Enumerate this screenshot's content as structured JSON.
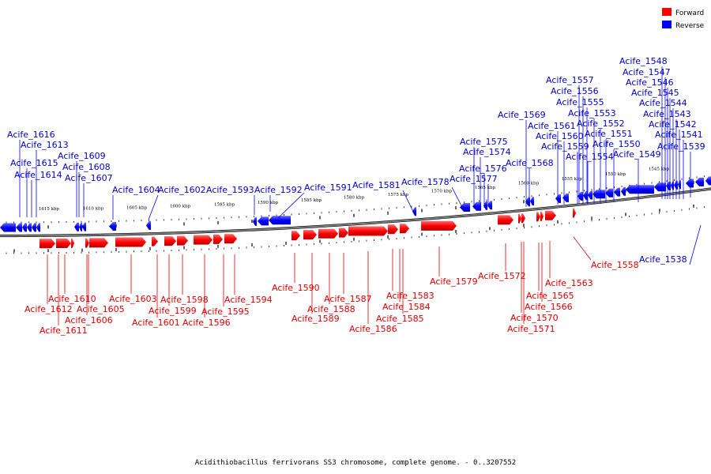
{
  "colors": {
    "forward": "#ff0000",
    "reverse": "#0000ff",
    "forward_text": "#dd0000",
    "reverse_text": "#0000cc",
    "backbone": "#808080"
  },
  "legend": {
    "forward_label": "Forward",
    "reverse_label": "Reverse"
  },
  "caption": "Acidithiobacillus ferrivorans SS3 chromosome, complete genome. - 0..3207552",
  "scale_labels": [
    "1615 kbp",
    "1610 kbp",
    "1605 kbp",
    "1600 kbp",
    "1595 kbp",
    "1590 kbp",
    "1585 kbp",
    "1580 kbp",
    "1575 kbp",
    "1570 kbp",
    "1565 kbp",
    "1560 kbp",
    "1555 kbp",
    "1550 kbp",
    "1545 kbp"
  ],
  "reverse_labels": [
    "Acife_1616",
    "Acife_1613",
    "Acife_1615",
    "Acife_1614",
    "Acife_1609",
    "Acife_1608",
    "Acife_1607",
    "Acife_1604",
    "Acife_1602",
    "Acife_1593",
    "Acife_1592",
    "Acife_1591",
    "Acife_1581",
    "Acife_1578",
    "Acife_1575",
    "Acife_1574",
    "Acife_1576",
    "Acife_1577",
    "Acife_1569",
    "Acife_1568",
    "Acife_1557",
    "Acife_1556",
    "Acife_1555",
    "Acife_1553",
    "Acife_1561",
    "Acife_1552",
    "Acife_1560",
    "Acife_1551",
    "Acife_1559",
    "Acife_1550",
    "Acife_1554",
    "Acife_1549",
    "Acife_1548",
    "Acife_1547",
    "Acife_1546",
    "Acife_1545",
    "Acife_1544",
    "Acife_1543",
    "Acife_1542",
    "Acife_1541",
    "Acife_1539",
    "Acife_1538"
  ],
  "forward_labels": [
    "Acife_1610",
    "Acife_1612",
    "Acife_1611",
    "Acife_1605",
    "Acife_1606",
    "Acife_1603",
    "Acife_1601",
    "Acife_1599",
    "Acife_1598",
    "Acife_1596",
    "Acife_1595",
    "Acife_1594",
    "Acife_1590",
    "Acife_1589",
    "Acife_1588",
    "Acife_1587",
    "Acife_1586",
    "Acife_1585",
    "Acife_1584",
    "Acife_1583",
    "Acife_1579",
    "Acife_1572",
    "Acife_1571",
    "Acife_1570",
    "Acife_1566",
    "Acife_1565",
    "Acife_1563",
    "Acife_1558"
  ]
}
